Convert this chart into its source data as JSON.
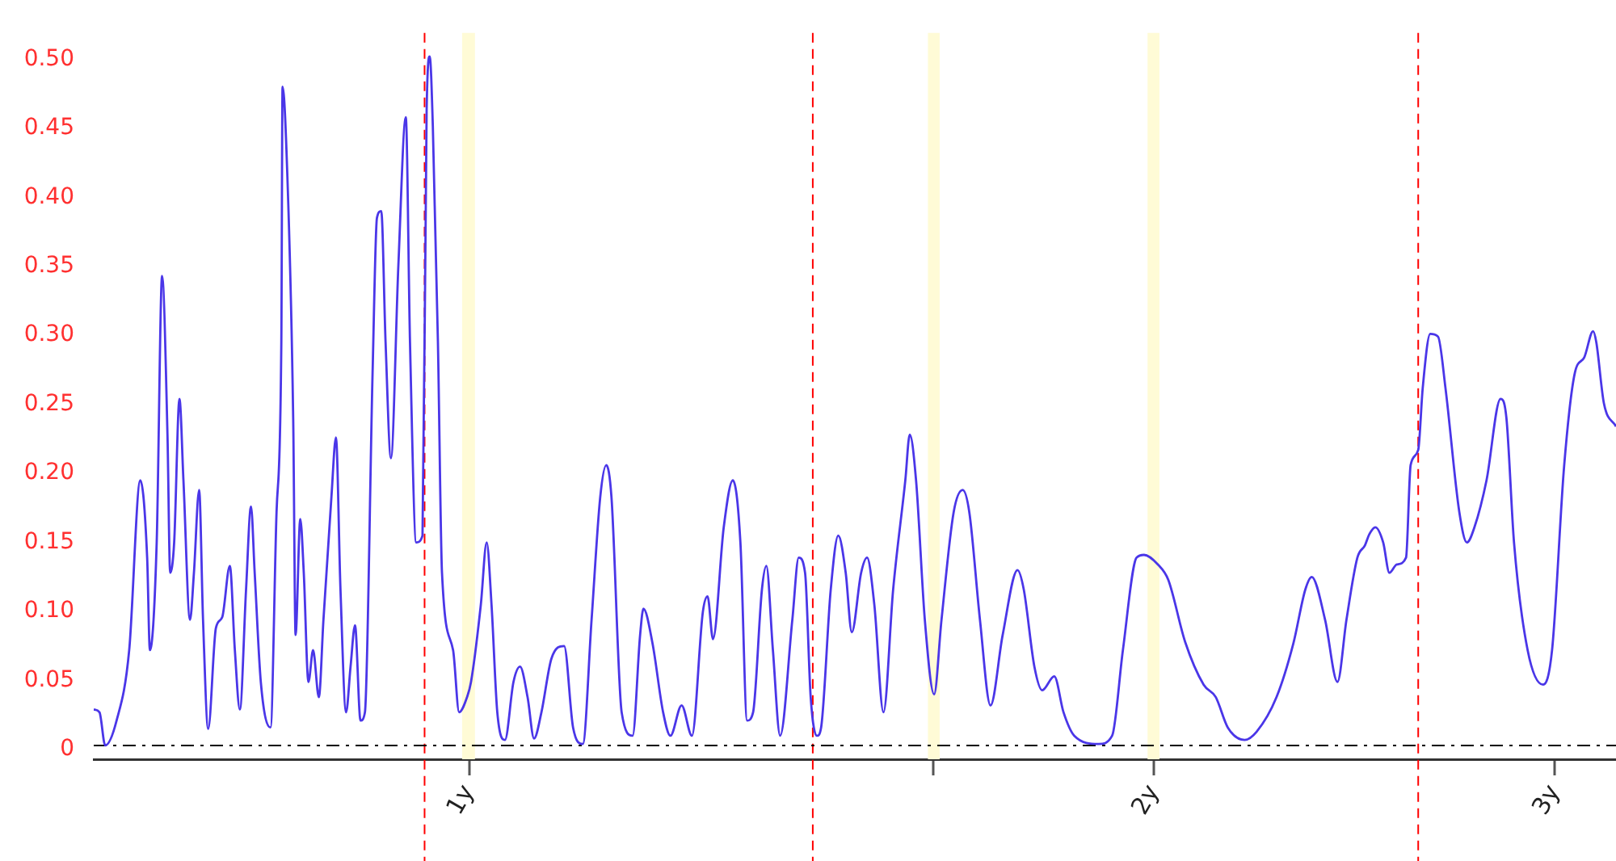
{
  "chart_data": {
    "type": "line",
    "x": [
      0.684,
      0.688,
      0.692,
      0.7,
      0.709,
      0.717,
      0.722,
      0.724,
      0.729,
      0.733,
      0.737,
      0.739,
      0.742,
      0.746,
      0.749,
      0.754,
      0.757,
      0.761,
      0.764,
      0.768,
      0.774,
      0.779,
      0.785,
      0.789,
      0.793,
      0.798,
      0.802,
      0.805,
      0.81,
      0.818,
      0.823,
      0.827,
      0.828,
      0.831,
      0.837,
      0.839,
      0.843,
      0.846,
      0.85,
      0.854,
      0.859,
      0.863,
      0.87,
      0.874,
      0.878,
      0.883,
      0.887,
      0.891,
      0.896,
      0.9,
      0.907,
      0.911,
      0.915,
      0.919,
      0.924,
      0.931,
      0.938,
      0.942,
      0.948,
      0.954,
      0.958,
      0.961,
      0.964,
      0.969,
      0.973,
      0.984,
      0.99,
      0.998,
      1.002,
      1.012,
      1.018,
      1.023,
      1.029,
      1.037,
      1.046,
      1.053,
      1.061,
      1.068,
      1.076,
      1.087,
      1.101,
      1.111,
      1.122,
      1.132,
      1.142,
      1.149,
      1.155,
      1.167,
      1.18,
      1.189,
      1.193,
      1.204,
      1.217,
      1.226,
      1.24,
      1.253,
      1.267,
      1.273,
      1.28,
      1.294,
      1.306,
      1.316,
      1.325,
      1.333,
      1.345,
      1.351,
      1.36,
      1.37,
      1.387,
      1.396,
      1.405,
      1.413,
      1.422,
      1.428,
      1.442,
      1.453,
      1.464,
      1.473,
      1.487,
      1.496,
      1.507,
      1.521,
      1.536,
      1.555,
      1.562,
      1.572,
      1.586,
      1.601,
      1.613,
      1.633,
      1.648,
      1.659,
      1.677,
      1.695,
      1.716,
      1.742,
      1.753,
      1.772,
      1.786,
      1.808,
      1.825,
      1.845,
      1.891,
      1.917,
      1.938,
      1.965,
      1.98,
      2.008,
      2.029,
      2.064,
      2.103,
      2.129,
      2.155,
      2.192,
      2.219,
      2.264,
      2.303,
      2.331,
      2.346,
      2.378,
      2.408,
      2.43,
      2.457,
      2.476,
      2.487,
      2.502,
      2.522,
      2.538,
      2.557,
      2.581,
      2.593,
      2.613,
      2.625,
      2.645,
      2.666,
      2.686,
      2.724,
      2.745,
      2.766,
      2.8,
      2.84,
      2.857,
      2.879,
      2.919,
      2.965,
      2.992,
      3.029,
      3.062,
      3.091,
      3.119,
      3.129,
      3.153,
      3.192
    ],
    "series": [
      {
        "color": "#4a36e8",
        "values": [
          0.029,
          0.027,
          0.003,
          0.021,
          0.072,
          0.195,
          0.139,
          0.072,
          0.15,
          0.343,
          0.228,
          0.128,
          0.15,
          0.254,
          0.195,
          0.094,
          0.128,
          0.188,
          0.094,
          0.015,
          0.088,
          0.096,
          0.133,
          0.072,
          0.029,
          0.116,
          0.176,
          0.128,
          0.049,
          0.016,
          0.172,
          0.295,
          0.48,
          0.441,
          0.239,
          0.083,
          0.167,
          0.128,
          0.049,
          0.072,
          0.038,
          0.094,
          0.183,
          0.226,
          0.116,
          0.027,
          0.06,
          0.09,
          0.021,
          0.027,
          0.273,
          0.385,
          0.39,
          0.295,
          0.211,
          0.351,
          0.458,
          0.295,
          0.15,
          0.155,
          0.463,
          0.502,
          0.452,
          0.295,
          0.128,
          0.072,
          0.027,
          0.038,
          0.049,
          0.105,
          0.15,
          0.105,
          0.027,
          0.007,
          0.049,
          0.06,
          0.038,
          0.008,
          0.027,
          0.066,
          0.075,
          0.016,
          0.004,
          0.094,
          0.183,
          0.206,
          0.183,
          0.027,
          0.01,
          0.083,
          0.102,
          0.077,
          0.027,
          0.01,
          0.032,
          0.01,
          0.1,
          0.111,
          0.08,
          0.161,
          0.195,
          0.15,
          0.021,
          0.027,
          0.116,
          0.133,
          0.072,
          0.01,
          0.094,
          0.139,
          0.128,
          0.038,
          0.01,
          0.016,
          0.116,
          0.155,
          0.128,
          0.085,
          0.128,
          0.139,
          0.105,
          0.027,
          0.116,
          0.195,
          0.228,
          0.195,
          0.094,
          0.04,
          0.094,
          0.172,
          0.188,
          0.172,
          0.094,
          0.032,
          0.083,
          0.13,
          0.116,
          0.06,
          0.043,
          0.053,
          0.027,
          0.01,
          0.004,
          0.01,
          0.072,
          0.139,
          0.141,
          0.134,
          0.123,
          0.078,
          0.047,
          0.038,
          0.016,
          0.007,
          0.013,
          0.038,
          0.077,
          0.116,
          0.125,
          0.094,
          0.049,
          0.094,
          0.139,
          0.148,
          0.156,
          0.161,
          0.15,
          0.128,
          0.134,
          0.139,
          0.206,
          0.217,
          0.262,
          0.301,
          0.299,
          0.262,
          0.172,
          0.15,
          0.161,
          0.195,
          0.254,
          0.24,
          0.15,
          0.072,
          0.047,
          0.072,
          0.206,
          0.273,
          0.284,
          0.303,
          0.295,
          0.251,
          0.234
        ]
      }
    ],
    "xlim": [
      0.684,
      3.192
    ],
    "xticks": [
      {
        "value": 1,
        "label": "1y"
      },
      {
        "value": 1.6,
        "label": null
      },
      {
        "value": 2,
        "label": "2y"
      },
      {
        "value": 3,
        "label": "3y"
      }
    ],
    "log": "x",
    "ylim": [
      -0.007,
      0.519
    ],
    "yticks": [
      0,
      0.05,
      {
        "value": 0.1,
        "label": "0.10"
      },
      0.15,
      {
        "value": 0.2,
        "label": "0.20"
      },
      0.25,
      {
        "value": 0.3,
        "label": "0.30"
      },
      0.35,
      {
        "value": 0.4,
        "label": "0.40"
      },
      0.45,
      {
        "value": 0.5,
        "label": "0.50"
      }
    ],
    "ref_lines": [
      {
        "axis": "x",
        "value": 0.956,
        "color": "#ff0000",
        "line_style": "dashed"
      },
      {
        "axis": "x",
        "value": 1.416,
        "color": "#ff0000",
        "line_style": "dashed"
      },
      {
        "axis": "x",
        "value": 2.613,
        "color": "#ff0000",
        "line_style": "dashed"
      },
      {
        "axis": "y",
        "value": 0.003,
        "color": "#000000",
        "line_style": "dashed"
      }
    ],
    "bands": [
      {
        "axis": "x",
        "from": 0.993,
        "to": 1.006,
        "color": "#fffbd6"
      },
      {
        "axis": "x",
        "from": 1.591,
        "to": 1.61,
        "color": "#fffbd6"
      },
      {
        "axis": "x",
        "from": 1.987,
        "to": 2.011,
        "color": "#fffbd6"
      }
    ],
    "grid": false,
    "legend": false,
    "marker": "none",
    "line_style": "solid"
  }
}
